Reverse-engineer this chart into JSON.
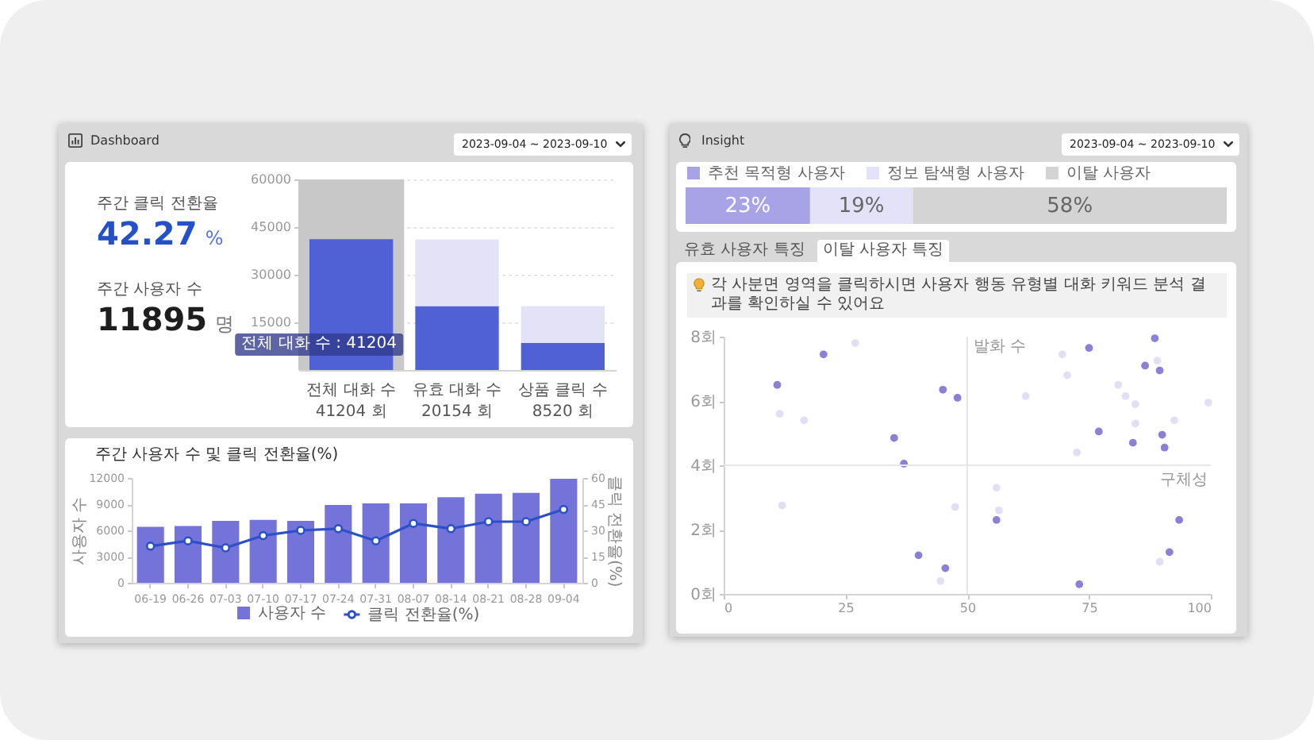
{
  "chart_data": [
    {
      "type": "other",
      "title": "Dashboard",
      "annotations": [
        "2023-09-04 ~ 2023-09-10",
        "주간 클릭 전환율",
        "42.27 %",
        "주간 사용자 수",
        "11895 명"
      ]
    },
    {
      "type": "bar",
      "categories": [
        "전체 대화 수",
        "유효 대화 수",
        "상품 클릭 수"
      ],
      "stacked": true,
      "series": [
        {
          "color": "#5060d5",
          "values": [
            41204,
            20154,
            8520
          ],
          "value_labels": [
            "41204 회",
            "20154 회",
            "8520 회"
          ]
        },
        {
          "color": "#e3e2f7",
          "values": [
            null,
            21000,
            11600
          ]
        }
      ],
      "ylim": [
        0,
        60000
      ],
      "yticks": [
        15000,
        30000,
        45000,
        60000
      ],
      "grid": "y",
      "bands": [
        {
          "axis": "x",
          "from": "전체 대화 수",
          "to": "전체 대화 수",
          "color": "#c8c8c8"
        }
      ],
      "annotations": [
        "전체 대화 수 : 41204"
      ]
    },
    {
      "type": "bar",
      "title": "주간 사용자 수 및 클릭 전환율(%)",
      "categories": [
        "06-19",
        "06-26",
        "07-03",
        "07-10",
        "07-17",
        "07-24",
        "07-31",
        "08-07",
        "08-14",
        "08-21",
        "08-28",
        "09-04"
      ],
      "series": [
        {
          "name": "사용자 수",
          "color": "#7373d9",
          "values": [
            6400,
            6500,
            7100,
            7200,
            7100,
            8900,
            9100,
            9100,
            9800,
            10200,
            10300,
            11900
          ]
        },
        {
          "name": "클릭 전환율(%)",
          "type": "line",
          "axis": "y2",
          "color": "#2b50c8",
          "values": [
            21,
            24,
            20,
            27,
            30,
            31,
            24,
            34,
            31,
            35,
            35,
            42
          ]
        }
      ],
      "ylabel": "사용자 수",
      "y2label": "클릭 전환율(%)",
      "ylim": [
        0,
        12000
      ],
      "yticks": [
        0,
        3000,
        6000,
        9000,
        12000
      ],
      "y2lim": [
        0,
        60
      ],
      "y2ticks": [
        0,
        15,
        30,
        45,
        60
      ],
      "marker": "circle",
      "legend": "bottom"
    },
    {
      "type": "bar",
      "title": "Insight",
      "orientation": "horizontal",
      "stacked": true,
      "categories": [
        null
      ],
      "series": [
        {
          "name": "추천 목적형 사용자",
          "color": "#a8a2e6",
          "values": [
            23
          ],
          "value_labels": [
            "23%"
          ]
        },
        {
          "name": "정보 탐색형 사용자",
          "color": "#e4e2f8",
          "values": [
            19
          ],
          "value_labels": [
            "19%"
          ]
        },
        {
          "name": "이탈 사용자",
          "color": "#d4d4d4",
          "values": [
            58
          ],
          "value_labels": [
            "58%"
          ]
        }
      ],
      "legend": "top left",
      "annotations": [
        "2023-09-04 ~ 2023-09-10"
      ]
    },
    {
      "type": "scatter",
      "series": [
        {
          "color": "#8a80d6",
          "x": [
            11,
            20.5,
            45,
            48,
            35,
            37,
            40,
            45.5,
            88.5,
            75,
            86.5,
            89.5,
            77,
            90,
            84,
            90.5,
            93.5,
            56,
            91.5,
            73
          ],
          "values": [
            6.5,
            7.45,
            6.35,
            6.1,
            4.85,
            4.05,
            1.2,
            0.8,
            7.95,
            7.65,
            7.1,
            6.95,
            5.05,
            4.95,
            4.7,
            4.55,
            2.3,
            2.3,
            1.3,
            0.3
          ]
        },
        {
          "color": "#e2dff5",
          "x": [
            27,
            11.5,
            16.5,
            12,
            47.5,
            44.5,
            69.5,
            89,
            70.5,
            81,
            62,
            82.5,
            84.5,
            99.5,
            84.5,
            92.5,
            72.5,
            56,
            56.5,
            89.5
          ],
          "values": [
            7.8,
            5.6,
            5.4,
            2.75,
            2.7,
            0.4,
            7.45,
            7.25,
            6.8,
            6.5,
            6.15,
            6.15,
            5.9,
            5.95,
            5.3,
            5.4,
            4.4,
            3.3,
            2.6,
            1
          ]
        }
      ],
      "xlim": [
        0,
        100
      ],
      "xticks": [
        0,
        25,
        50,
        75,
        100
      ],
      "ylim": [
        0,
        8
      ],
      "yticks": [
        {
          "value": 0,
          "label": "0회"
        },
        {
          "value": 2,
          "label": "2회"
        },
        {
          "value": 4,
          "label": "4회"
        },
        {
          "value": 6,
          "label": "6회"
        },
        {
          "value": 8,
          "label": "8회"
        }
      ],
      "ref_lines": [
        {
          "axis": "x",
          "value": 50,
          "label": "발화 수",
          "color": "#e6e6e6"
        },
        {
          "axis": "y",
          "value": 4,
          "label": "구체성",
          "color": "#e6e6e6"
        }
      ],
      "marker": "circle",
      "annotations": [
        "유효 사용자 특징",
        "이탈 사용자 특징",
        "각 사분면 영역을 클릭하시면 사용자 행동 유형별 대화 키워드 분석 결과를 확인하실 수 있어요"
      ]
    }
  ]
}
